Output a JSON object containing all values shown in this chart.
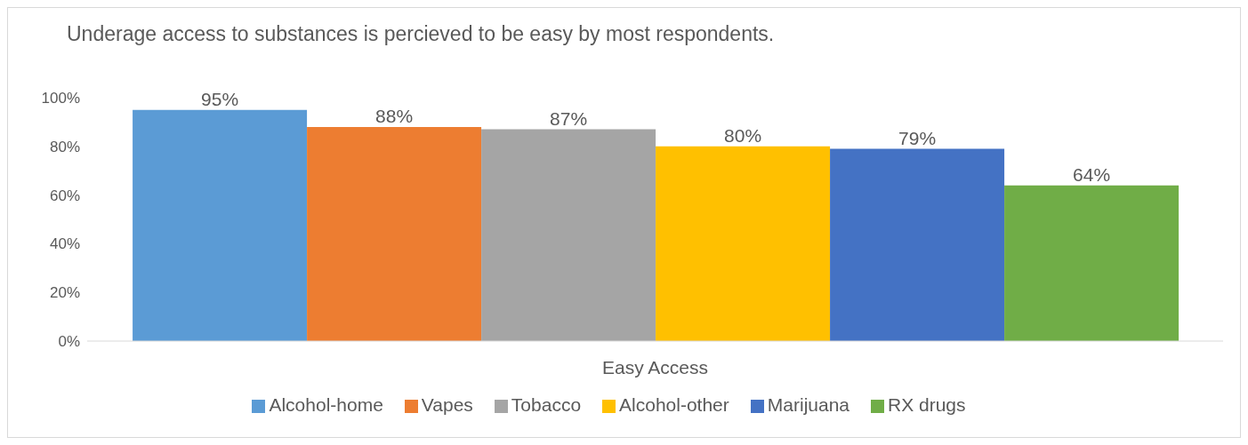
{
  "chart_data": {
    "type": "bar",
    "title": "Underage access to substances is percieved to be easy by most respondents.",
    "categories": [
      "Easy Access"
    ],
    "series": [
      {
        "name": "Alcohol-home",
        "color": "#5b9bd5",
        "values": [
          95
        ],
        "value_labels": [
          "95%"
        ]
      },
      {
        "name": "Vapes",
        "color": "#ed7d31",
        "values": [
          88
        ],
        "value_labels": [
          "88%"
        ]
      },
      {
        "name": "Tobacco",
        "color": "#a5a5a5",
        "values": [
          87
        ],
        "value_labels": [
          "87%"
        ]
      },
      {
        "name": "Alcohol-other",
        "color": "#ffc000",
        "values": [
          80
        ],
        "value_labels": [
          "80%"
        ]
      },
      {
        "name": "Marijuana",
        "color": "#4472c4",
        "values": [
          79
        ],
        "value_labels": [
          "79%"
        ]
      },
      {
        "name": "RX drugs",
        "color": "#70ad47",
        "values": [
          64
        ],
        "value_labels": [
          "64%"
        ]
      }
    ],
    "ylim": [
      0,
      100
    ],
    "yticks": [
      {
        "value": 0,
        "label": "0%"
      },
      {
        "value": 20,
        "label": "20%"
      },
      {
        "value": 40,
        "label": "40%"
      },
      {
        "value": 60,
        "label": "60%"
      },
      {
        "value": 80,
        "label": "80%"
      },
      {
        "value": 100,
        "label": "100%"
      }
    ],
    "legend": "bottom"
  }
}
